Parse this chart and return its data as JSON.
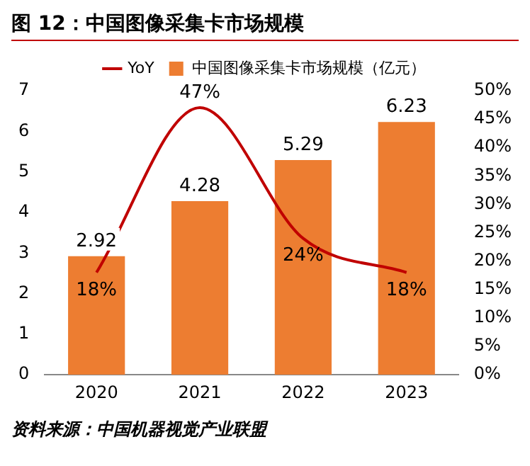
{
  "chart_data": {
    "type": "bar",
    "title": "图 12：中国图像采集卡市场规模",
    "categories": [
      "2020",
      "2021",
      "2022",
      "2023"
    ],
    "series": [
      {
        "name": "中国图像采集卡市场规模（亿元）",
        "color": "#ed7d31",
        "values": [
          2.92,
          4.28,
          5.29,
          6.23
        ],
        "value_labels": [
          "2.92",
          "4.28",
          "5.29",
          "6.23"
        ]
      },
      {
        "name": "YoY",
        "type": "line",
        "axis": "y2",
        "color": "#c00000",
        "values": [
          18,
          47,
          24,
          18
        ],
        "value_labels": [
          "18%",
          "47%",
          "24%",
          "18%"
        ]
      }
    ],
    "ylim": [
      0,
      7
    ],
    "yticks": [
      0,
      1,
      2,
      3,
      4,
      5,
      6,
      7
    ],
    "y2lim": [
      0,
      50
    ],
    "y2ticks": [
      {
        "value": 0,
        "label": "0%"
      },
      {
        "value": 5,
        "label": "5%"
      },
      {
        "value": 10,
        "label": "10%"
      },
      {
        "value": 15,
        "label": "15%"
      },
      {
        "value": 20,
        "label": "20%"
      },
      {
        "value": 25,
        "label": "25%"
      },
      {
        "value": 30,
        "label": "30%"
      },
      {
        "value": 35,
        "label": "35%"
      },
      {
        "value": 40,
        "label": "40%"
      },
      {
        "value": 45,
        "label": "45%"
      },
      {
        "value": 50,
        "label": "50%"
      }
    ],
    "grid": false,
    "legend": "top",
    "marker": "none",
    "annotations": [
      "资料来源：中国机器视觉产业联盟"
    ]
  }
}
